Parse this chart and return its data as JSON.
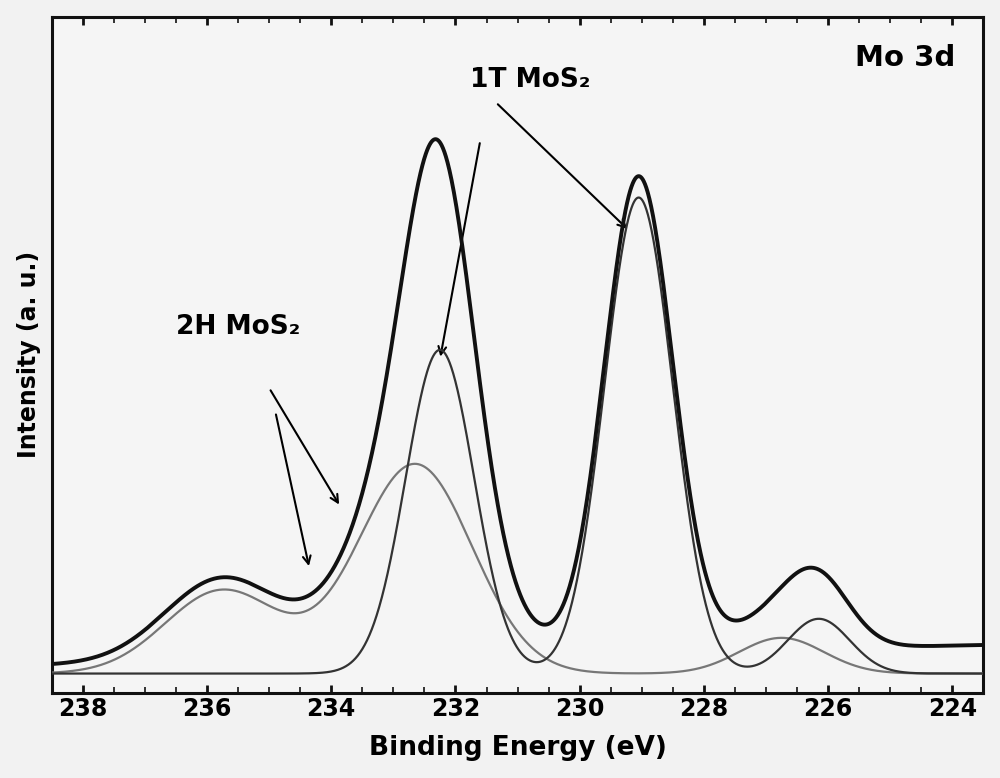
{
  "title": "Mo 3d",
  "xlabel": "Binding Energy (eV)",
  "ylabel": "Intensity (a. u.)",
  "x_min": 223.5,
  "x_max": 238.5,
  "x_ticks": [
    238,
    236,
    234,
    232,
    230,
    228,
    226,
    224
  ],
  "annotation_1T": "1T MoS₂",
  "annotation_2H": "2H MoS₂",
  "fig_bg": "#f2f2f2",
  "plot_bg": "#f5f5f5",
  "spine_color": "#111111",
  "tick_color": "#111111",
  "color_composite": "#111111",
  "color_1T": "#333333",
  "color_2H": "#777777",
  "lw_composite": 2.8,
  "lw_1T": 1.6,
  "lw_2H": 1.6
}
